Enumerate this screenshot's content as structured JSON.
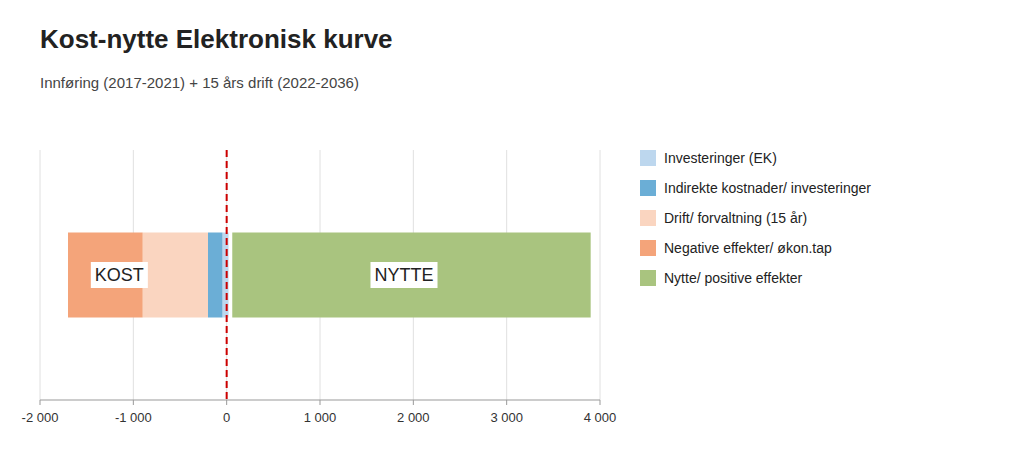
{
  "chart_data": {
    "type": "bar",
    "orientation": "horizontal",
    "title": "Kost-nytte Elektronisk kurve",
    "subtitle": "Innføring (2017-2021) + 15 års drift (2022-2036)",
    "categories": [
      null
    ],
    "series": [
      {
        "name": "Investeringer (EK)",
        "color": "#BDD7EE",
        "values": [
          65
        ],
        "starts": [
          -45
        ]
      },
      {
        "name": "Indirekte kostnader/ investeringer",
        "color": "#6BAED6",
        "values": [
          155
        ],
        "starts": [
          -200
        ]
      },
      {
        "name": "Drift/ forvaltning (15 år)",
        "color": "#FAD5C0",
        "values": [
          700
        ],
        "starts": [
          -900
        ]
      },
      {
        "name": "Negative effekter/ økon.tap",
        "color": "#F4A47A",
        "values": [
          800
        ],
        "starts": [
          -1700
        ]
      },
      {
        "name": "Nytte/ positive effekter",
        "color": "#A9C47F",
        "values": [
          3840
        ],
        "starts": [
          60
        ]
      }
    ],
    "xlim": [
      -2000,
      4000
    ],
    "xticks": [
      {
        "value": -2000,
        "label": "-2 000"
      },
      {
        "value": -1000,
        "label": "-1 000"
      },
      0,
      {
        "value": 1000,
        "label": "1 000"
      },
      {
        "value": 2000,
        "label": "2 000"
      },
      {
        "value": 3000,
        "label": "3 000"
      },
      {
        "value": 4000,
        "label": "4 000"
      }
    ],
    "vline": {
      "value": 0,
      "color": "#CC0000"
    },
    "annotations": [
      {
        "text": "KOST",
        "x": -1150
      },
      {
        "text": "NYTTE",
        "x": 1900
      }
    ],
    "grid": true,
    "legend": "right",
    "tick_labels": "x"
  }
}
